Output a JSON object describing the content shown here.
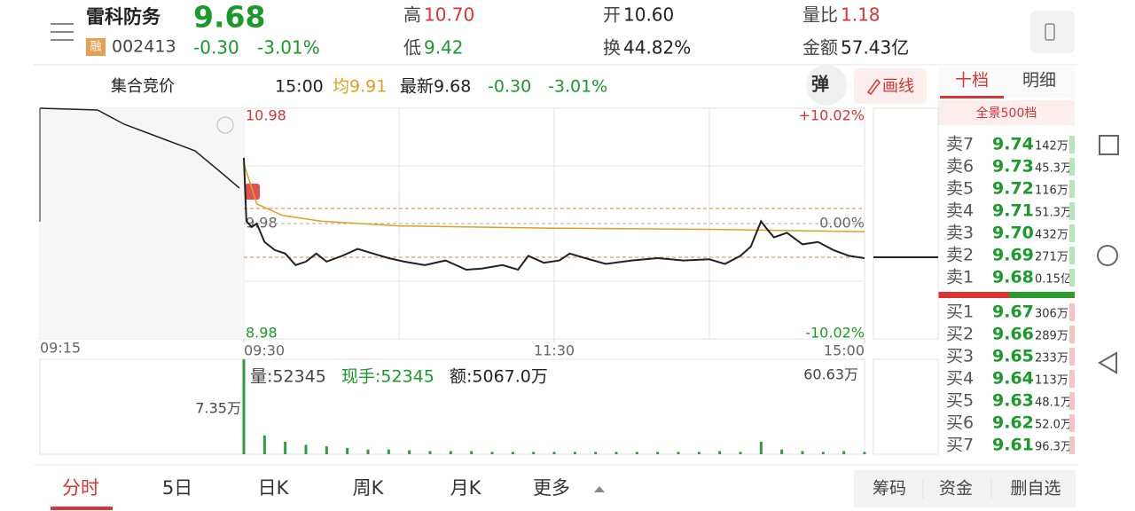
{
  "header": {
    "name": "雷科防务",
    "price": "9.68",
    "badge": "融",
    "code": "002413",
    "change": "-0.30",
    "change_pct": "-3.01%",
    "stats": [
      {
        "label": "高",
        "value": "10.70"
      },
      {
        "label": "低",
        "value": "9.42"
      },
      {
        "label": "开",
        "value": "10.60"
      },
      {
        "label": "换",
        "value": "44.82%"
      },
      {
        "label": "量比",
        "value": "1.18"
      },
      {
        "label": "金额",
        "value": "57.43亿"
      }
    ]
  },
  "subbar": {
    "auction": "集合竞价",
    "time": "15:00",
    "avg": "均9.91",
    "latest": "最新9.68",
    "change": "-0.30",
    "change_pct": "-3.01%",
    "popup": "弹",
    "draw": "画线"
  },
  "orderbook": {
    "tabs": [
      "十档",
      "明细"
    ],
    "depth": "全景500档",
    "asks": [
      [
        "卖7",
        "9.74",
        "142万"
      ],
      [
        "卖6",
        "9.73",
        "45.3万"
      ],
      [
        "卖5",
        "9.72",
        "116万"
      ],
      [
        "卖4",
        "9.71",
        "51.3万"
      ],
      [
        "卖3",
        "9.70",
        "432万"
      ],
      [
        "卖2",
        "9.69",
        "271万"
      ],
      [
        "卖1",
        "9.68",
        "0.15亿"
      ]
    ],
    "bids": [
      [
        "买1",
        "9.67",
        "306万"
      ],
      [
        "买2",
        "9.66",
        "289万"
      ],
      [
        "买3",
        "9.65",
        "233万"
      ],
      [
        "买4",
        "9.64",
        "113万"
      ],
      [
        "买5",
        "9.63",
        "48.1万"
      ],
      [
        "买6",
        "9.62",
        "52.0万"
      ],
      [
        "买7",
        "9.61",
        "96.3万"
      ]
    ]
  },
  "chart": {
    "type": "line",
    "ylim": [
      8.98,
      10.98
    ],
    "yticks": [
      10.98,
      9.98,
      8.98
    ],
    "y2lim": [
      -10.02,
      10.02
    ],
    "y2ticks": [
      {
        "value": 10.02,
        "label": "+10.02%"
      },
      {
        "value": 0,
        "label": "0.00%"
      },
      {
        "value": -10.02,
        "label": "-10.02%"
      }
    ],
    "xlim": [
      0,
      240
    ],
    "xticks": [
      {
        "value": 0,
        "label": "09:30"
      },
      {
        "value": 120,
        "label": "11:30"
      },
      {
        "value": 240,
        "label": "15:00"
      }
    ],
    "auction_label": "09:15",
    "price": {
      "color": "#222222",
      "x": [
        0,
        1,
        3,
        5,
        8,
        12,
        16,
        20,
        24,
        28,
        32,
        38,
        44,
        50,
        56,
        62,
        70,
        78,
        86,
        92,
        100,
        106,
        110,
        116,
        122,
        126,
        132,
        140,
        150,
        160,
        170,
        180,
        186,
        192,
        196,
        200,
        202,
        205,
        210,
        216,
        222,
        228,
        234,
        240
      ],
      "values": [
        10.55,
        10.0,
        9.95,
        9.98,
        9.82,
        9.75,
        9.72,
        9.62,
        9.65,
        9.72,
        9.65,
        9.7,
        9.76,
        9.72,
        9.68,
        9.65,
        9.62,
        9.66,
        9.58,
        9.59,
        9.62,
        9.58,
        9.7,
        9.64,
        9.66,
        9.72,
        9.68,
        9.63,
        9.66,
        9.68,
        9.66,
        9.67,
        9.63,
        9.7,
        9.78,
        10.0,
        9.94,
        9.86,
        9.9,
        9.8,
        9.82,
        9.75,
        9.7,
        9.68
      ]
    },
    "avg": {
      "color": "#e0a020",
      "x": [
        0,
        5,
        15,
        30,
        60,
        120,
        180,
        240
      ],
      "values": [
        10.5,
        10.15,
        10.05,
        10.0,
        9.96,
        9.94,
        9.93,
        9.91
      ]
    },
    "volume": {
      "color": "#2e9e3a",
      "ylim": [
        0,
        60.63
      ],
      "yticks": [
        {
          "value": 60.63,
          "label": "60.63万"
        }
      ],
      "x": [
        0,
        8,
        16,
        24,
        32,
        40,
        48,
        56,
        64,
        72,
        80,
        88,
        96,
        104,
        112,
        120,
        128,
        136,
        144,
        152,
        160,
        168,
        176,
        184,
        192,
        200,
        208,
        216,
        224,
        232,
        240
      ],
      "values": [
        60.63,
        12,
        8,
        6,
        5,
        4,
        3,
        3,
        2.5,
        2,
        2,
        2,
        1.5,
        1.5,
        1.5,
        1.5,
        1.5,
        1.5,
        1.5,
        1.5,
        1.5,
        1.5,
        1.5,
        2,
        1.5,
        8,
        3,
        2,
        1.5,
        2,
        1.5
      ],
      "volume_text": "量:52345",
      "hand_text": "现手:52345",
      "amount_text": "额:5067.0万",
      "auction_max": "7.35万"
    }
  },
  "tabs": [
    "分时",
    "5日",
    "日K",
    "周K",
    "月K",
    "更多"
  ],
  "actions": [
    "筹码",
    "资金",
    "删自选"
  ]
}
